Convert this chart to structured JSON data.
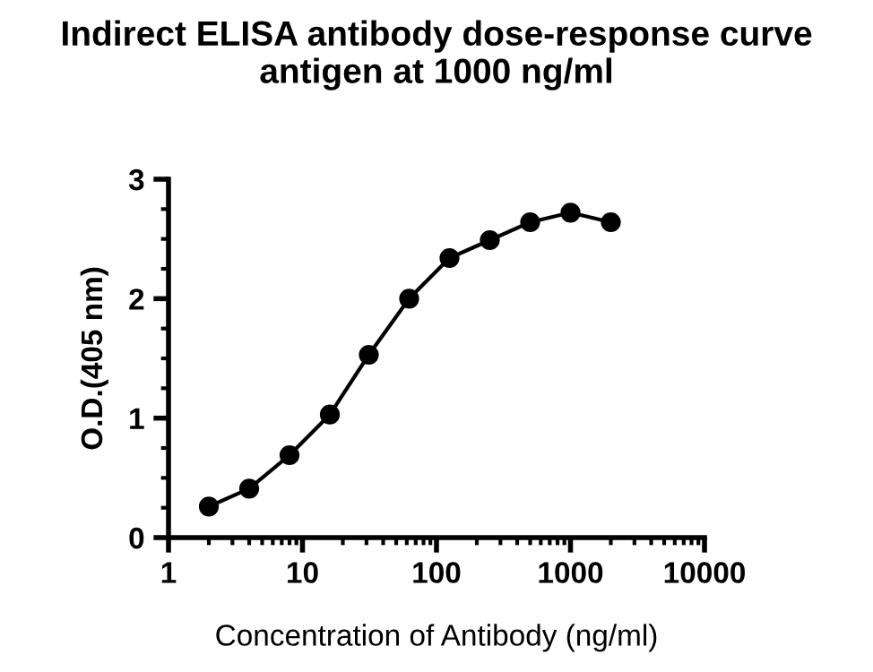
{
  "chart_data": {
    "type": "line",
    "title": "Indirect ELISA antibody dose-response curve\nantigen at 1000 ng/ml",
    "xlabel": "Concentration of Antibody (ng/ml)",
    "ylabel": "O.D.(405 nm)",
    "x": [
      2,
      4,
      8,
      16,
      31.25,
      62.5,
      125,
      250,
      500,
      1000,
      2000
    ],
    "series": [
      {
        "color": "#000000",
        "values": [
          0.26,
          0.41,
          0.69,
          1.03,
          1.53,
          2.0,
          2.34,
          2.49,
          2.64,
          2.72,
          2.64
        ]
      }
    ],
    "log": "x",
    "xlim": [
      1,
      10000
    ],
    "xticks": [
      1,
      10,
      100,
      1000,
      10000
    ],
    "ylim": [
      0,
      3
    ],
    "yticks": [
      0,
      1,
      2,
      3
    ],
    "grid": false,
    "legend": false,
    "marker": "circle",
    "line_style": "solid"
  }
}
